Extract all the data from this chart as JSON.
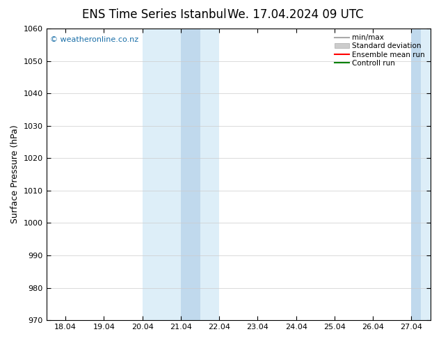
{
  "title": "ENS Time Series Istanbul",
  "title2": "We. 17.04.2024 09 UTC",
  "ylabel": "Surface Pressure (hPa)",
  "ylim": [
    970,
    1060
  ],
  "yticks": [
    970,
    980,
    990,
    1000,
    1010,
    1020,
    1030,
    1040,
    1050,
    1060
  ],
  "x_labels": [
    "18.04",
    "19.04",
    "20.04",
    "21.04",
    "22.04",
    "23.04",
    "24.04",
    "25.04",
    "26.04",
    "27.04"
  ],
  "x_values": [
    0,
    1,
    2,
    3,
    4,
    5,
    6,
    7,
    8,
    9
  ],
  "xlim": [
    -0.5,
    9.5
  ],
  "shaded_regions": [
    {
      "x_start": 2,
      "x_end": 4,
      "color": "#ddeef8"
    },
    {
      "x_start": 9,
      "x_end": 9.5,
      "color": "#ddeef8"
    }
  ],
  "shaded_sub_regions": [
    {
      "x_start": 3,
      "x_end": 3.5,
      "color": "#c0d9ed"
    },
    {
      "x_start": 9.0,
      "x_end": 9.25,
      "color": "#c0d9ed"
    }
  ],
  "watermark": "© weatheronline.co.nz",
  "watermark_color": "#1a6fa8",
  "legend_entries": [
    {
      "label": "min/max",
      "color": "#aaaaaa",
      "lw": 1.5
    },
    {
      "label": "Standard deviation",
      "color": "#cccccc",
      "lw": 6
    },
    {
      "label": "Ensemble mean run",
      "color": "red",
      "lw": 1.5
    },
    {
      "label": "Controll run",
      "color": "green",
      "lw": 1.5
    }
  ],
  "bg_color": "#ffffff",
  "plot_bg_color": "#ffffff",
  "grid_color": "#cccccc",
  "title_fontsize": 12,
  "tick_fontsize": 8,
  "ylabel_fontsize": 9
}
